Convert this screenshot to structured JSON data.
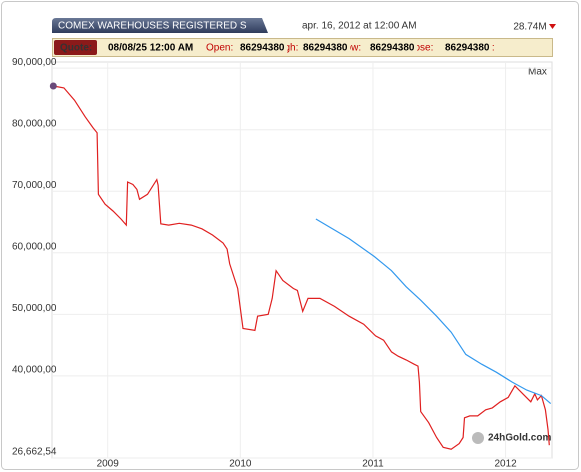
{
  "header": {
    "title": "COMEX WAREHOUSES REGISTERED S",
    "date": "apr. 16, 2012 at 12:00 AM",
    "last_value": "28.74M"
  },
  "quote": {
    "label": "Quote:",
    "time": "08/08/25 12:00 AM",
    "fields": [
      {
        "label": "Open:",
        "value": "86294380"
      },
      {
        "label": "High:",
        "value": "86294380"
      },
      {
        "label": "Low:",
        "value": "86294380"
      },
      {
        "label": "Close:",
        "value": "86294380"
      },
      {
        "label": "Vol:"
      }
    ]
  },
  "range_button": "Max",
  "watermark": "24hGold.com",
  "chart_data": {
    "type": "line",
    "grid": true,
    "xlim": [
      2008.58,
      2012.35
    ],
    "xticks": [
      2009,
      2010,
      2011,
      2012
    ],
    "ylim": [
      26662540,
      91000000
    ],
    "yticks": [
      {
        "value": 26662540,
        "label": "26,662,54"
      },
      {
        "value": 40000000,
        "label": "40,000,00"
      },
      {
        "value": 50000000,
        "label": "50,000,00"
      },
      {
        "value": 60000000,
        "label": "60,000,00"
      },
      {
        "value": 70000000,
        "label": "70,000,00"
      },
      {
        "value": 80000000,
        "label": "80,000,00"
      },
      {
        "value": 90000000,
        "label": "90,000,00"
      }
    ],
    "series": [
      {
        "color": "#e02020",
        "x": [
          2008.59,
          2008.67,
          2008.75,
          2008.83,
          2008.89,
          2008.92,
          2008.93,
          2008.98,
          2009.04,
          2009.1,
          2009.14,
          2009.15,
          2009.19,
          2009.22,
          2009.24,
          2009.3,
          2009.37,
          2009.38,
          2009.4,
          2009.46,
          2009.54,
          2009.63,
          2009.71,
          2009.79,
          2009.87,
          2009.9,
          2009.92,
          2009.98,
          2010.02,
          2010.11,
          2010.13,
          2010.21,
          2010.24,
          2010.27,
          2010.32,
          2010.4,
          2010.43,
          2010.47,
          2010.51,
          2010.6,
          2010.71,
          2010.82,
          2010.93,
          2011.02,
          2011.08,
          2011.14,
          2011.19,
          2011.25,
          2011.31,
          2011.34,
          2011.35,
          2011.36,
          2011.42,
          2011.48,
          2011.53,
          2011.59,
          2011.65,
          2011.68,
          2011.69,
          2011.73,
          2011.79,
          2011.85,
          2011.9,
          2011.96,
          2012.02,
          2012.07,
          2012.13,
          2012.19,
          2012.22,
          2012.24,
          2012.27,
          2012.3,
          2012.32,
          2012.33
        ],
        "values": [
          87100000,
          86800000,
          84800000,
          82100000,
          80300000,
          79500000,
          69500000,
          67900000,
          66800000,
          65500000,
          64500000,
          71500000,
          71100000,
          70300000,
          68700000,
          69500000,
          71900000,
          71000000,
          64700000,
          64500000,
          64800000,
          64500000,
          63900000,
          62900000,
          61600000,
          60600000,
          58200000,
          54200000,
          47700000,
          47400000,
          49700000,
          50000000,
          52600000,
          57100000,
          55500000,
          54200000,
          53900000,
          50500000,
          52600000,
          52600000,
          51300000,
          49700000,
          48400000,
          46500000,
          45800000,
          43900000,
          43200000,
          42600000,
          41900000,
          41600000,
          39000000,
          34200000,
          32400000,
          30000000,
          28400000,
          28100000,
          29000000,
          30000000,
          33200000,
          33500000,
          33500000,
          34500000,
          34800000,
          35800000,
          36500000,
          38400000,
          37100000,
          35800000,
          37100000,
          36100000,
          36800000,
          34500000,
          31300000,
          28740000
        ]
      },
      {
        "color": "#3399ee",
        "x": [
          2010.57,
          2010.82,
          2011.01,
          2011.14,
          2011.25,
          2011.36,
          2011.48,
          2011.59,
          2011.7,
          2011.82,
          2011.93,
          2012.05,
          2012.16,
          2012.27,
          2012.34
        ],
        "values": [
          65500000,
          62300000,
          59400000,
          57100000,
          54500000,
          52300000,
          49700000,
          47100000,
          43500000,
          41900000,
          40600000,
          39000000,
          37700000,
          36800000,
          35500000
        ]
      }
    ]
  }
}
